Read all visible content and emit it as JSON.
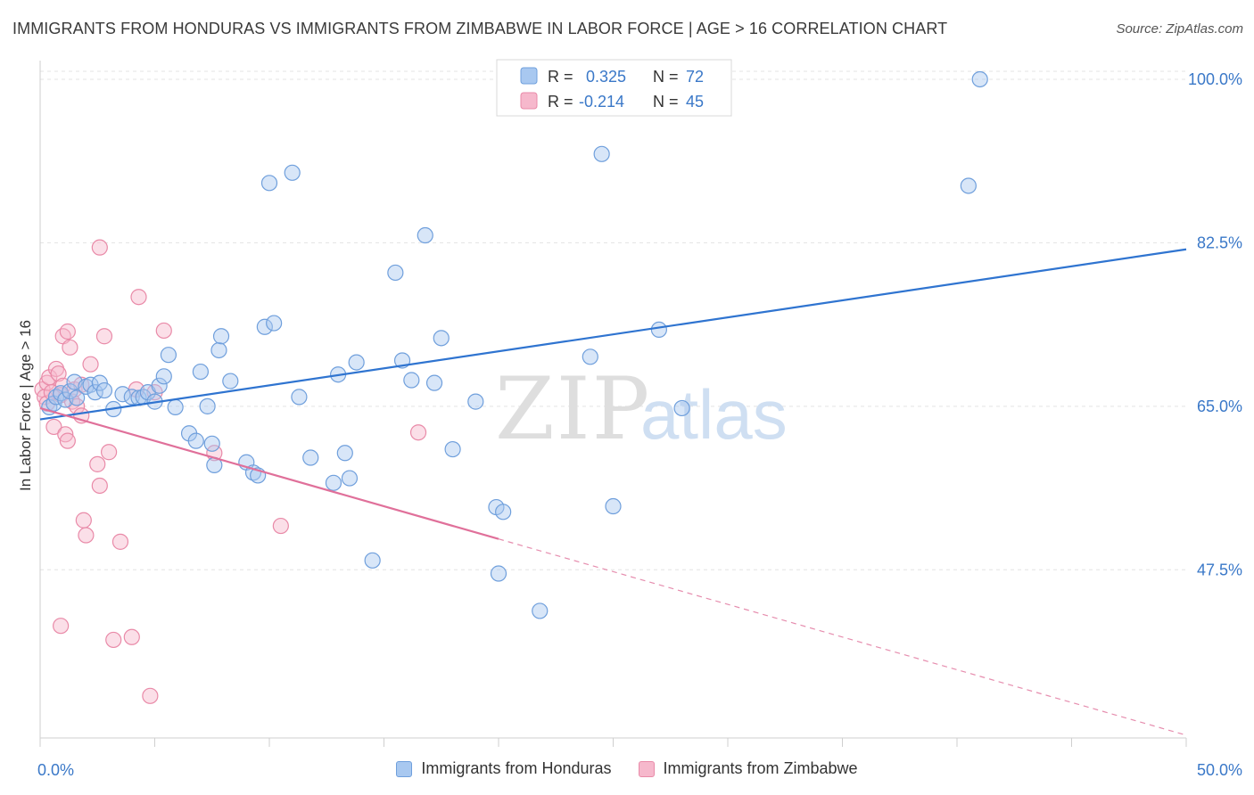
{
  "title": "IMMIGRANTS FROM HONDURAS VS IMMIGRANTS FROM ZIMBABWE IN LABOR FORCE | AGE > 16 CORRELATION CHART",
  "source": "Source: ZipAtlas.com",
  "watermark": {
    "zip": "ZIP",
    "atlas": "atlas"
  },
  "colors": {
    "honduras_fill": "#a8c8f0",
    "honduras_stroke": "#6f9fdc",
    "honduras_line": "#2f74d0",
    "zimbabwe_fill": "#f6b8cc",
    "zimbabwe_stroke": "#e98aa8",
    "zimbabwe_line": "#e0709a",
    "value_text": "#3a78c8"
  },
  "legend_box": {
    "rows": [
      {
        "r_label": "R = ",
        "r_value": "0.325",
        "n_label": "N = ",
        "n_value": "72"
      },
      {
        "r_label": "R = ",
        "r_value": "-0.214",
        "n_label": "N = ",
        "n_value": "45"
      }
    ]
  },
  "chart_data": {
    "type": "scatter",
    "title": "IMMIGRANTS FROM HONDURAS VS IMMIGRANTS FROM ZIMBABWE IN LABOR FORCE | AGE > 16 CORRELATION CHART",
    "xlabel": "",
    "ylabel": "In Labor Force | Age > 16",
    "xlim": [
      0,
      50
    ],
    "ylim": [
      29.5,
      102
    ],
    "x_tick_labels": [
      "0.0%",
      "50.0%"
    ],
    "y_ticks": [
      47.5,
      65.0,
      82.5,
      100.0
    ],
    "y_tick_labels": [
      "47.5%",
      "65.0%",
      "82.5%",
      "100.0%"
    ],
    "grid": true,
    "legend_position": "bottom",
    "series": [
      {
        "name": "Immigrants from Honduras",
        "r": 0.325,
        "n": 72,
        "trend": {
          "x": [
            0.0,
            50.0
          ],
          "y": [
            63.6,
            81.8
          ]
        },
        "points": [
          [
            0.4,
            64.9
          ],
          [
            0.6,
            65.3
          ],
          [
            0.7,
            66.0
          ],
          [
            0.9,
            66.4
          ],
          [
            1.1,
            65.7
          ],
          [
            1.3,
            66.6
          ],
          [
            1.5,
            67.6
          ],
          [
            1.6,
            65.9
          ],
          [
            2.0,
            67.1
          ],
          [
            2.2,
            67.3
          ],
          [
            2.4,
            66.5
          ],
          [
            2.6,
            67.5
          ],
          [
            2.8,
            66.7
          ],
          [
            3.2,
            64.7
          ],
          [
            3.6,
            66.3
          ],
          [
            4.0,
            66.0
          ],
          [
            4.3,
            65.9
          ],
          [
            4.5,
            66.0
          ],
          [
            4.7,
            66.5
          ],
          [
            5.0,
            65.5
          ],
          [
            5.2,
            67.2
          ],
          [
            5.4,
            68.2
          ],
          [
            5.6,
            70.5
          ],
          [
            5.9,
            64.9
          ],
          [
            6.5,
            62.1
          ],
          [
            6.8,
            61.3
          ],
          [
            7.0,
            68.7
          ],
          [
            7.3,
            65.0
          ],
          [
            7.5,
            61.0
          ],
          [
            7.6,
            58.7
          ],
          [
            7.8,
            71.0
          ],
          [
            7.9,
            72.5
          ],
          [
            8.3,
            67.7
          ],
          [
            9.0,
            59.0
          ],
          [
            9.3,
            57.9
          ],
          [
            9.5,
            57.6
          ],
          [
            9.8,
            73.5
          ],
          [
            10.0,
            88.9
          ],
          [
            10.2,
            73.9
          ],
          [
            11.0,
            90.0
          ],
          [
            11.3,
            66.0
          ],
          [
            11.8,
            59.5
          ],
          [
            12.8,
            56.8
          ],
          [
            13.0,
            68.4
          ],
          [
            13.3,
            60.0
          ],
          [
            13.5,
            57.3
          ],
          [
            13.8,
            69.7
          ],
          [
            14.5,
            48.5
          ],
          [
            15.5,
            79.3
          ],
          [
            15.8,
            69.9
          ],
          [
            16.2,
            67.8
          ],
          [
            16.8,
            83.3
          ],
          [
            17.2,
            67.5
          ],
          [
            17.5,
            72.3
          ],
          [
            18.0,
            60.4
          ],
          [
            19.0,
            65.5
          ],
          [
            19.9,
            54.2
          ],
          [
            20.0,
            47.1
          ],
          [
            20.2,
            53.7
          ],
          [
            21.8,
            43.1
          ],
          [
            24.0,
            70.3
          ],
          [
            24.5,
            92.0
          ],
          [
            25.0,
            54.3
          ],
          [
            27.0,
            73.2
          ],
          [
            28.0,
            64.8
          ],
          [
            40.5,
            88.6
          ],
          [
            41.0,
            100.0
          ]
        ]
      },
      {
        "name": "Immigrants from Zimbabwe",
        "r": -0.214,
        "n": 45,
        "trend": {
          "x": [
            0.0,
            20.0,
            50.0
          ],
          "y": [
            64.8,
            50.8,
            29.8
          ]
        },
        "trend_solid_until_x": 20.0,
        "points": [
          [
            0.1,
            66.8
          ],
          [
            0.2,
            66.0
          ],
          [
            0.3,
            65.3
          ],
          [
            0.3,
            67.5
          ],
          [
            0.4,
            68.1
          ],
          [
            0.5,
            66.5
          ],
          [
            0.6,
            62.8
          ],
          [
            0.7,
            69.0
          ],
          [
            0.8,
            68.5
          ],
          [
            0.9,
            66.2
          ],
          [
            1.0,
            67.2
          ],
          [
            1.0,
            72.5
          ],
          [
            1.1,
            62.0
          ],
          [
            1.2,
            73.0
          ],
          [
            1.2,
            61.3
          ],
          [
            1.3,
            71.3
          ],
          [
            1.4,
            65.5
          ],
          [
            1.5,
            66.8
          ],
          [
            1.6,
            65.0
          ],
          [
            1.8,
            67.3
          ],
          [
            1.8,
            64.0
          ],
          [
            1.9,
            52.8
          ],
          [
            2.0,
            51.2
          ],
          [
            2.2,
            69.5
          ],
          [
            2.5,
            58.8
          ],
          [
            2.6,
            56.5
          ],
          [
            2.6,
            82.0
          ],
          [
            2.8,
            72.5
          ],
          [
            3.0,
            60.1
          ],
          [
            3.2,
            40.0
          ],
          [
            3.5,
            50.5
          ],
          [
            4.0,
            40.3
          ],
          [
            4.2,
            66.8
          ],
          [
            4.3,
            76.7
          ],
          [
            4.8,
            34.0
          ],
          [
            5.0,
            66.5
          ],
          [
            5.4,
            73.1
          ],
          [
            7.6,
            60.0
          ],
          [
            10.5,
            52.2
          ],
          [
            16.5,
            62.2
          ],
          [
            0.9,
            41.5
          ]
        ]
      }
    ]
  }
}
